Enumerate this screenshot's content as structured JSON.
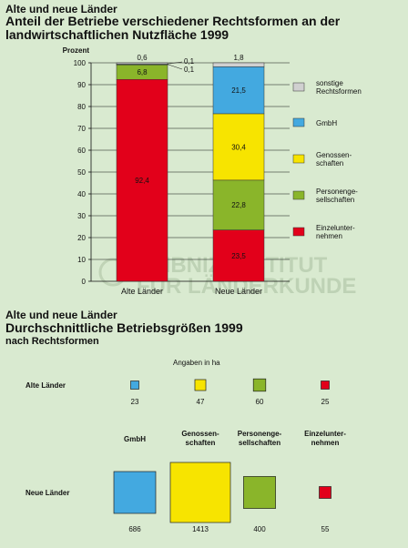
{
  "chart1": {
    "supertitle": "Alte und neue Länder",
    "title": "Anteil der Betriebe verschiedener Rechtsformen an der landwirtschaftlichen Nutzfläche 1999"
  },
  "chart2": {
    "supertitle": "Alte und neue Länder",
    "title": "Durchschnittliche Betriebsgrößen 1999",
    "subtitle": "nach Rechtsformen",
    "note": "Angaben in ha"
  },
  "watermark": {
    "line1": "LEIBNIZ-INSTITUT",
    "line2": "FÜR LÄNDERKUNDE"
  },
  "colors": {
    "sonstige": "#d0d0d0",
    "gmbh": "#43a9e0",
    "genossenschaften": "#f7e400",
    "personengesellschaften": "#8ab52a",
    "einzelunternehmen": "#e2001a"
  },
  "chart_data": [
    {
      "type": "bar",
      "stacked": true,
      "ylabel": "Prozent",
      "ylim": [
        0,
        100
      ],
      "yticks": [
        "0",
        "10",
        "20",
        "30",
        "40",
        "50",
        "60",
        "70",
        "80",
        "90",
        "100"
      ],
      "categories": [
        "Alte Länder",
        "Neue Länder"
      ],
      "series": [
        {
          "name": "Einzelunternehmen",
          "legend_label": "Einzelunter-\nnehmen",
          "color": "#e2001a",
          "values": [
            92.4,
            23.5
          ],
          "labels": [
            "92,4",
            "23,5"
          ]
        },
        {
          "name": "Personengesellschaften",
          "legend_label": "Personenge-\nsellschaften",
          "color": "#8ab52a",
          "values": [
            6.8,
            22.8
          ],
          "labels": [
            "6,8",
            "22,8"
          ]
        },
        {
          "name": "Genossenschaften",
          "legend_label": "Genossen-\nschaften",
          "color": "#f7e400",
          "values": [
            0.1,
            30.4
          ],
          "labels": [
            "0,1",
            "30,4"
          ]
        },
        {
          "name": "GmbH",
          "legend_label": "GmbH",
          "color": "#43a9e0",
          "values": [
            0.1,
            21.5
          ],
          "labels": [
            "0,1",
            "21,5"
          ]
        },
        {
          "name": "sonstige Rechtsformen",
          "legend_label": "sonstige\nRechtsformen",
          "color": "#d0d0d0",
          "values": [
            0.6,
            1.8
          ],
          "labels": [
            "0,6",
            "1,8"
          ]
        }
      ],
      "legend": "right"
    },
    {
      "type": "area-squares",
      "unit": "ha",
      "categories": [
        "GmbH",
        "Genossen-\nschaften",
        "Personenge-\nsellschaften",
        "Einzelunter-\nnehmen"
      ],
      "colors": [
        "#43a9e0",
        "#f7e400",
        "#8ab52a",
        "#e2001a"
      ],
      "rows": [
        {
          "name": "Alte Länder",
          "values": [
            23,
            47,
            60,
            25
          ]
        },
        {
          "name": "Neue Länder",
          "values": [
            686,
            1413,
            400,
            55
          ]
        }
      ]
    }
  ]
}
